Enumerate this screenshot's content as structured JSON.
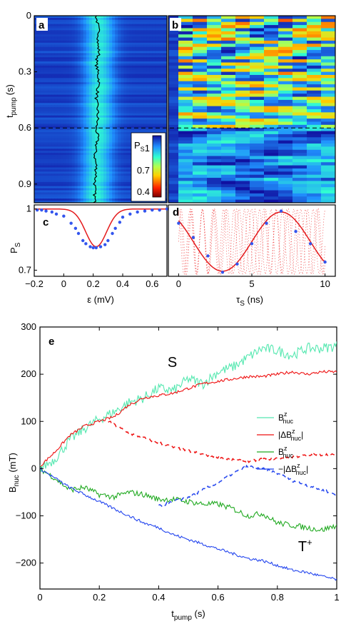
{
  "chart_data": [
    {
      "panel": "a",
      "type": "heatmap",
      "xlabel": "",
      "ylabel": "t",
      "ylabel_sub": "pump",
      "ylabel_unit": "(s)",
      "yticks": [
        "0",
        "0.3",
        "0.6",
        "0.9"
      ],
      "ylim": [
        0,
        1.0
      ],
      "xlim": [
        -0.2,
        0.7
      ],
      "dashed_line_t": 0.6,
      "colorbar": {
        "label": "P",
        "label_sub": "S",
        "ticks": [
          "1",
          "0.7",
          "0.4"
        ],
        "range": [
          0.35,
          1.05
        ]
      },
      "resonance_trace_eps": [
        0.22,
        0.23,
        0.24,
        0.23,
        0.24,
        0.22,
        0.23,
        0.24,
        0.23,
        0.22,
        0.23,
        0.23,
        0.22,
        0.23,
        0.22,
        0.21,
        0.22,
        0.22,
        0.21,
        0.21,
        0.21
      ],
      "resonance_trace_t": [
        0,
        0.05,
        0.1,
        0.15,
        0.2,
        0.25,
        0.3,
        0.35,
        0.4,
        0.45,
        0.5,
        0.55,
        0.6,
        0.65,
        0.7,
        0.75,
        0.8,
        0.85,
        0.9,
        0.95,
        1.0
      ]
    },
    {
      "panel": "b",
      "type": "heatmap",
      "xlabel": "",
      "ylabel": "",
      "xlim": [
        -0.5,
        10.5
      ],
      "ylim": [
        0,
        1.0
      ],
      "dashed_line_t": 0.6
    },
    {
      "panel": "c",
      "type": "line",
      "xlabel": "ε (mV)",
      "ylabel": "P",
      "ylabel_sub": "S",
      "xticks": [
        "−0.2",
        "0",
        "0.2",
        "0.4",
        "0.6"
      ],
      "xtick_values": [
        -0.2,
        0,
        0.2,
        0.4,
        0.6
      ],
      "yticks": [
        "1",
        "0.7"
      ],
      "ytick_values": [
        1.0,
        0.7
      ],
      "xlim": [
        -0.2,
        0.7
      ],
      "ylim": [
        0.67,
        1.02
      ],
      "points_x": [
        -0.18,
        -0.15,
        -0.12,
        -0.08,
        -0.05,
        0.0,
        0.05,
        0.08,
        0.1,
        0.13,
        0.15,
        0.18,
        0.2,
        0.22,
        0.25,
        0.28,
        0.3,
        0.33,
        0.35,
        0.38,
        0.4,
        0.45,
        0.5,
        0.55,
        0.6,
        0.65,
        0.7
      ],
      "points_y": [
        0.995,
        0.995,
        0.99,
        0.985,
        0.975,
        0.965,
        0.93,
        0.905,
        0.88,
        0.845,
        0.83,
        0.815,
        0.81,
        0.81,
        0.815,
        0.825,
        0.845,
        0.88,
        0.905,
        0.935,
        0.96,
        0.975,
        0.985,
        0.99,
        0.995,
        0.995,
        1.0
      ],
      "fit_center": 0.22,
      "fit_depth": 0.185,
      "fit_width": 0.1
    },
    {
      "panel": "d",
      "type": "line",
      "xlabel": "τ",
      "xlabel_sub": "S",
      "xlabel_unit": " (ns)",
      "xticks": [
        "0",
        "5",
        "10"
      ],
      "xtick_values": [
        0,
        5,
        10
      ],
      "xlim": [
        -0.7,
        10.7
      ],
      "ylim": [
        0.67,
        1.02
      ],
      "points_x": [
        0,
        1,
        2,
        3,
        4,
        5,
        6,
        7,
        8,
        9,
        10
      ],
      "points_y": [
        0.93,
        0.86,
        0.77,
        0.69,
        0.73,
        0.83,
        0.93,
        0.99,
        0.89,
        0.83,
        0.74
      ],
      "fit_mean": 0.84,
      "fit_amp": 0.145,
      "fit_period": 8.0,
      "fit_phase_x": 3.0
    },
    {
      "panel": "e",
      "type": "line",
      "xlabel": "t",
      "xlabel_sub": "pump",
      "xlabel_unit": " (s)",
      "ylabel": "B",
      "ylabel_sub": "nuc",
      "ylabel_unit": " (mT)",
      "xticks": [
        "0",
        "0.2",
        "0.4",
        "0.6",
        "0.8",
        "1"
      ],
      "xtick_values": [
        0,
        0.2,
        0.4,
        0.6,
        0.8,
        1.0
      ],
      "yticks": [
        "300",
        "200",
        "100",
        "0",
        "−100",
        "−200"
      ],
      "ytick_values": [
        300,
        200,
        100,
        0,
        -100,
        -200
      ],
      "xlim": [
        0,
        1.0
      ],
      "ylim": [
        -255,
        300
      ],
      "annotations": [
        {
          "text": "S",
          "x": 0.43,
          "y": 215
        },
        {
          "text": "T",
          "sup": "+",
          "x": 0.87,
          "y": -175
        }
      ],
      "series": [
        {
          "name": "B",
          "name_sup": "z",
          "name_sub": "nuc",
          "color": "#55e8b0",
          "x": [
            0,
            0.05,
            0.1,
            0.15,
            0.2,
            0.25,
            0.3,
            0.35,
            0.4,
            0.45,
            0.5,
            0.55,
            0.6,
            0.65,
            0.7,
            0.75,
            0.8,
            0.85,
            0.9,
            0.95,
            1.0
          ],
          "y": [
            0,
            20,
            60,
            85,
            105,
            120,
            140,
            150,
            170,
            165,
            190,
            180,
            205,
            215,
            235,
            255,
            250,
            240,
            255,
            255,
            260
          ]
        },
        {
          "name": "|ΔB",
          "name_sup": "z",
          "name_sub": "nuc",
          "name_end": "|",
          "color": "#ee1111",
          "x": [
            0,
            0.05,
            0.1,
            0.15,
            0.2,
            0.25,
            0.3,
            0.35,
            0.4,
            0.45,
            0.5,
            0.55,
            0.6,
            0.65,
            0.7,
            0.75,
            0.8,
            0.85,
            0.9,
            0.95,
            1.0
          ],
          "y": [
            5,
            35,
            70,
            90,
            100,
            110,
            135,
            150,
            155,
            160,
            170,
            180,
            185,
            190,
            195,
            195,
            200,
            205,
            200,
            205,
            205
          ]
        },
        {
          "name": "|ΔB",
          "name_sup": "z",
          "name_sub": "nuc",
          "name_end": "|",
          "color": "#ee1111",
          "dotted": true,
          "legend": false,
          "x": [
            0.23,
            0.3,
            0.35,
            0.4,
            0.45,
            0.5,
            0.55,
            0.6,
            0.65,
            0.7,
            0.75,
            0.8,
            0.85,
            0.9,
            0.95,
            1.0
          ],
          "y": [
            100,
            75,
            65,
            55,
            45,
            38,
            30,
            25,
            18,
            15,
            20,
            22,
            25,
            28,
            30,
            28
          ]
        },
        {
          "name": "B",
          "name_sup": "z",
          "name_sub": "nuc",
          "color": "#22aa22",
          "x": [
            0,
            0.05,
            0.1,
            0.15,
            0.2,
            0.25,
            0.3,
            0.35,
            0.4,
            0.45,
            0.5,
            0.55,
            0.6,
            0.65,
            0.7,
            0.75,
            0.8,
            0.85,
            0.9,
            0.95,
            1.0
          ],
          "y": [
            0,
            -20,
            -45,
            -40,
            -55,
            -60,
            -50,
            -55,
            -65,
            -65,
            -70,
            -75,
            -75,
            -85,
            -100,
            -95,
            -115,
            -120,
            -125,
            -130,
            -120
          ]
        },
        {
          "name": "−|ΔB",
          "name_sup": "z",
          "name_sub": "nuc",
          "name_end": "|",
          "color": "#2244ee",
          "x": [
            0,
            0.05,
            0.1,
            0.15,
            0.2,
            0.25,
            0.3,
            0.35,
            0.4,
            0.45,
            0.5,
            0.55,
            0.6,
            0.65,
            0.7,
            0.75,
            0.8,
            0.85,
            0.9,
            0.95,
            1.0
          ],
          "y": [
            0,
            -20,
            -40,
            -55,
            -70,
            -85,
            -100,
            -115,
            -125,
            -140,
            -150,
            -160,
            -170,
            -180,
            -190,
            -195,
            -205,
            -215,
            -220,
            -228,
            -235
          ]
        },
        {
          "name": "−|ΔB",
          "name_sup": "z",
          "name_sub": "nuc",
          "name_end": "|",
          "color": "#2244ee",
          "dotted": true,
          "legend": false,
          "x": [
            0.4,
            0.45,
            0.5,
            0.55,
            0.6,
            0.65,
            0.7,
            0.75,
            0.8,
            0.85,
            0.9,
            0.95,
            1.0
          ],
          "y": [
            -80,
            -70,
            -60,
            -45,
            -30,
            -10,
            5,
            0,
            -10,
            -25,
            -35,
            -45,
            -55
          ]
        }
      ]
    }
  ],
  "panel_labels": [
    "a",
    "b",
    "c",
    "d",
    "e"
  ]
}
